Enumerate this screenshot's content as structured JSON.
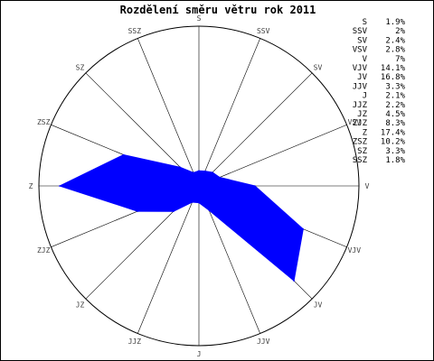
{
  "chart_data": {
    "type": "radar",
    "title": "Rozdělení směru větru rok 2011",
    "directions": [
      "S",
      "SSV",
      "SV",
      "VSV",
      "V",
      "VJV",
      "JV",
      "JJV",
      "J",
      "JJZ",
      "JZ",
      "ZJZ",
      "Z",
      "ZSZ",
      "SZ",
      "SSZ"
    ],
    "series": [
      {
        "values": [
          1.9,
          2.0,
          2.4,
          2.8,
          7.0,
          14.1,
          16.8,
          3.3,
          2.1,
          2.2,
          4.5,
          8.3,
          17.4,
          10.2,
          3.3,
          1.8
        ],
        "color": "#0000ff"
      }
    ],
    "legend": [
      {
        "dir": "S",
        "value": "1.9%"
      },
      {
        "dir": "SSV",
        "value": "2%"
      },
      {
        "dir": "SV",
        "value": "2.4%"
      },
      {
        "dir": "VSV",
        "value": "2.8%"
      },
      {
        "dir": "V",
        "value": "7%"
      },
      {
        "dir": "VJV",
        "value": "14.1%"
      },
      {
        "dir": "JV",
        "value": "16.8%"
      },
      {
        "dir": "JJV",
        "value": "3.3%"
      },
      {
        "dir": "J",
        "value": "2.1%"
      },
      {
        "dir": "JJZ",
        "value": "2.2%"
      },
      {
        "dir": "JZ",
        "value": "4.5%"
      },
      {
        "dir": "ZJZ",
        "value": "8.3%"
      },
      {
        "dir": "Z",
        "value": "17.4%"
      },
      {
        "dir": "ZSZ",
        "value": "10.2%"
      },
      {
        "dir": "SZ",
        "value": "3.3%"
      },
      {
        "dir": "SSZ",
        "value": "1.8%"
      }
    ],
    "rmax": 20,
    "legend_position": "top-right",
    "grid": true
  }
}
